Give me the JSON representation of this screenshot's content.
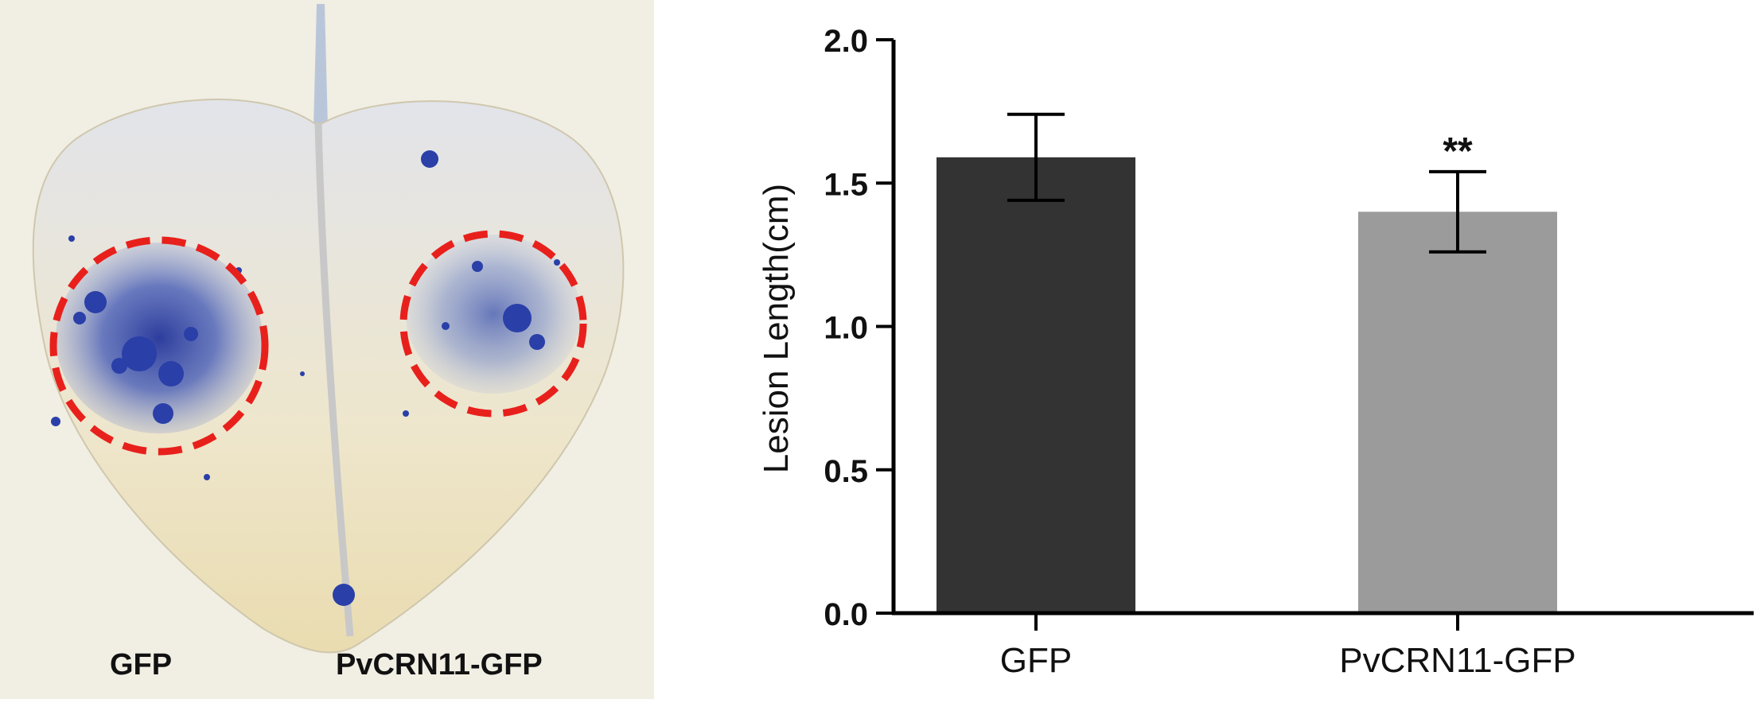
{
  "leaf_panel": {
    "labels": {
      "left": "GFP",
      "right": "PvCRN11-GFP"
    },
    "colors": {
      "background": "#f2efe4",
      "leaf": "#efe8cf",
      "stain": "#2a3fa8",
      "circle": "#e8201c"
    }
  },
  "chart_data": {
    "type": "bar",
    "categories": [
      "GFP",
      "PvCRN11-GFP"
    ],
    "values": [
      1.59,
      1.4
    ],
    "errors": [
      0.15,
      0.14
    ],
    "annotations": [
      "",
      "**"
    ],
    "colors": [
      "#333333",
      "#9b9b9b"
    ],
    "xlabel": "",
    "ylabel": "Lesion Length(cm)",
    "ylim": [
      0,
      2.0
    ],
    "yticks": [
      0.0,
      0.5,
      1.0,
      1.5,
      2.0
    ],
    "ytick_labels": [
      "0.0",
      "0.5",
      "1.0",
      "1.5",
      "2.0"
    ],
    "grid": false,
    "legend": "none"
  }
}
